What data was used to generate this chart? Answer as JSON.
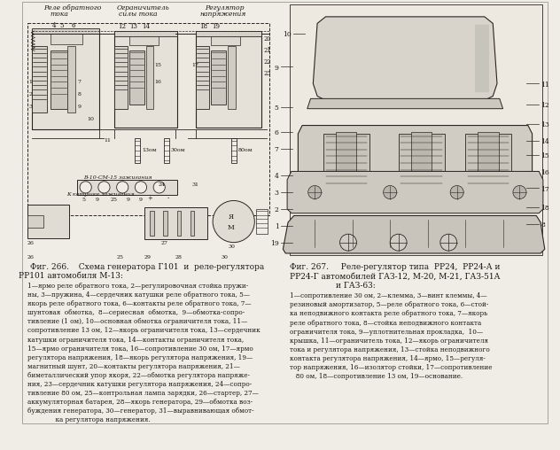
{
  "bg_color": "#f0ede6",
  "line_color": "#2a2520",
  "text_color": "#1a1510",
  "fig_width": 6.32,
  "fig_height": 5.08,
  "dpi": 100,
  "title_left_bold": "Фиг. 266.",
  "title_left_rest": "  Схема генератора Г101  и  реле-регулятора\n              РР101 автомобиля М-13:",
  "title_right_bold": "Фиг. 267.",
  "title_right_rest": "  Реле-регулятор типа  РР24,  РР24-А и\nРР24-Г автомобилей ГАЗ-12, М-20, М-21, ГАЗ-51А\n                    и ГАЗ-63:",
  "header_left": "Реле обратного\n     тока",
  "header_mid": "Ограничитель\n  силы тока",
  "header_right": "Регулятор\nнапряжения",
  "caption_left": "1—ярмо реле обратного тока, 2—регулировочная стойка пружи-\nны, 3—пружина, 4—сердечник катушки реле обратного тока, 5—\nякорь реле обратного тока, 6—контакты реле обратного тока, 7—\nшунтовая  обмотка,  8—сериесная  обмотка,  9—обмотка-сопро-\nтивление (1 ом), 10—основная обмотка ограничителя тока, 11—\nсопротивление 13 ом, 12—якорь ограничителя тока, 13—сердечник\nкатушки ограничителя тока, 14—контакты ограничителя тока,\n15—ярмо ограничителя тока, 16—сопротивление 30 ом, 17—ярмо\nрегулятора напряжения, 18—якорь регулятора напряжения, 19—\nмагнитный шунт, 20—контакты регулятора напряжения, 21—\nбиметаллический упор якоря, 22—обмотка регулятора напряже-\nния, 23—сердечник катушки регулятора напряжения, 24—сопро-\nтивление 80 ом, 25—контрольная лампа зарядки, 26—стартер, 27—\nаккумуляторная батарея, 28—якорь генератора, 29—обмотка воз-\nбуждения генератора, 30—генератор, 31—выравнивающая обмот-\n              ка регулятора напряжения.",
  "caption_right": "1—сопротивление 30 ом, 2—клемма, 3—винт клеммы, 4—\nрезиновый амортизатор, 5—реле обратного тока, 6—стой-\nка неподвижного контакта реле обратного тока, 7—якорь\nреле обратного тока, 8—стойка неподвижного контакта\nограничителя тока, 9—уплотнительная прокладка,  10—\nкрышка, 11—ограничитель тока, 12—якорь ограничителя\nтока и регулятора напряжения, 13—стойка неподвижного\nконтакта регулятора напряжения, 14—ярмо, 15—регуля-\nтор напряжения, 16—изолятор стойки, 17—сопротивление\n   80 ом, 18—сопротивление 13 ом, 19—основание."
}
